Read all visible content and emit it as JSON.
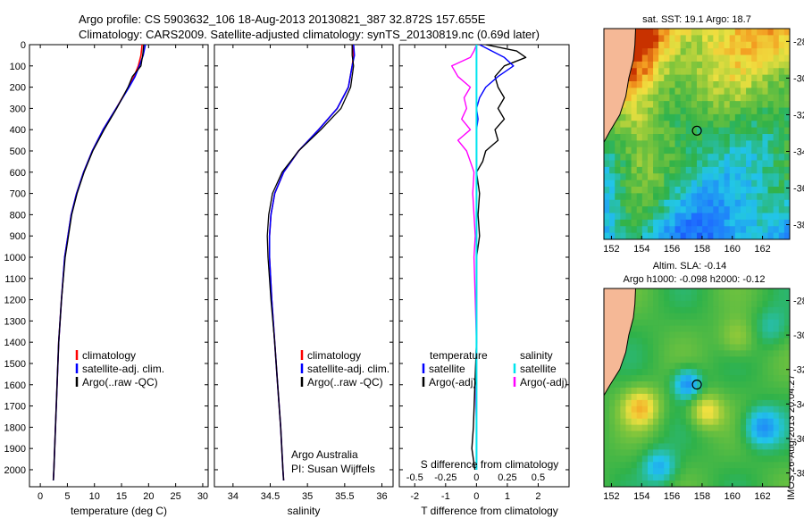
{
  "header": {
    "line1": "Argo profile: CS 5903632_106 18-Aug-2013 20130821_387 32.872S 157.655E",
    "line2": "Climatology: CARS2009. Satellite-adjusted climatology: synTS_20130819.nc (0.69d later)"
  },
  "stamp": "IMOS 26-Aug-2013 20:04:27",
  "colors": {
    "climatology": "#ff0000",
    "satellite": "#0000ff",
    "argo": "#000000",
    "salinity_satellite": "#00e5ee",
    "salinity_argo": "#ff00ff",
    "land": "#f5b896"
  },
  "chart_data": [
    {
      "type": "line",
      "xlabel": "temperature (deg C)",
      "ylabel": "",
      "xlim": [
        -2,
        31
      ],
      "ylim": [
        2080,
        0
      ],
      "xticks": [
        0,
        5,
        10,
        15,
        20,
        25,
        30
      ],
      "yticks": [
        0,
        100,
        200,
        300,
        400,
        500,
        600,
        700,
        800,
        900,
        1000,
        1100,
        1200,
        1300,
        1400,
        1500,
        1600,
        1700,
        1800,
        1900,
        2000
      ],
      "y": [
        0,
        50,
        100,
        150,
        200,
        300,
        400,
        500,
        600,
        700,
        800,
        1000,
        1200,
        1400,
        1600,
        1800,
        2000,
        2050
      ],
      "series": [
        {
          "name": "climatology",
          "values": [
            18.8,
            18.6,
            18.1,
            17.3,
            16.3,
            14.0,
            11.6,
            9.6,
            8.0,
            6.7,
            5.7,
            4.5,
            3.9,
            3.4,
            3.1,
            2.8,
            2.5,
            2.4
          ]
        },
        {
          "name": "satellite-adj. clim.",
          "values": [
            19.4,
            19.0,
            18.3,
            17.5,
            16.4,
            14.0,
            11.6,
            9.6,
            8.0,
            6.7,
            5.7,
            4.5,
            3.9,
            3.4,
            3.1,
            2.8,
            2.5,
            2.4
          ]
        },
        {
          "name": "Argo(..raw -QC)",
          "values": [
            19.1,
            18.9,
            18.6,
            17.0,
            16.2,
            14.1,
            11.8,
            9.7,
            8.1,
            6.8,
            5.8,
            4.6,
            3.9,
            3.4,
            3.1,
            2.8,
            2.5,
            2.4
          ]
        }
      ]
    },
    {
      "type": "line",
      "xlabel": "salinity",
      "ylabel": "",
      "xlim": [
        33.75,
        36.15
      ],
      "ylim": [
        2080,
        0
      ],
      "xticks": [
        34,
        34.5,
        35,
        35.5,
        36
      ],
      "annotations": [
        "Argo Australia",
        "PI: Susan Wijffels"
      ],
      "y": [
        0,
        50,
        100,
        200,
        300,
        400,
        500,
        600,
        700,
        800,
        900,
        1000,
        1200,
        1400,
        1600,
        1800,
        2000,
        2050
      ],
      "series": [
        {
          "name": "climatology",
          "values": [
            35.6,
            35.62,
            35.6,
            35.55,
            35.4,
            35.15,
            34.88,
            34.68,
            34.56,
            34.51,
            34.49,
            34.49,
            34.52,
            34.56,
            34.6,
            34.64,
            34.67,
            34.68
          ]
        },
        {
          "name": "satellite-adj. clim.",
          "values": [
            35.62,
            35.63,
            35.6,
            35.55,
            35.4,
            35.15,
            34.88,
            34.68,
            34.56,
            34.51,
            34.49,
            34.49,
            34.52,
            34.56,
            34.6,
            34.64,
            34.67,
            34.68
          ]
        },
        {
          "name": "Argo(..raw -QC)",
          "values": [
            35.6,
            35.6,
            35.62,
            35.58,
            35.45,
            35.18,
            34.88,
            34.66,
            34.53,
            34.48,
            34.46,
            34.47,
            34.51,
            34.56,
            34.6,
            34.64,
            34.67,
            34.68
          ]
        }
      ]
    },
    {
      "type": "line",
      "xlabel": "T difference from climatology",
      "ylabel": "",
      "xlim": [
        -2.5,
        3
      ],
      "ylim": [
        2080,
        0
      ],
      "xticks": [
        -2,
        -1,
        0,
        1,
        2
      ],
      "top_label": "S difference from climatology",
      "top_ticks": [
        "-0.5",
        "-0.25",
        "0",
        "0.25",
        "0.5"
      ],
      "legend": {
        "temperature_title": "temperature",
        "salinity_title": "salinity"
      },
      "y": [
        0,
        30,
        60,
        100,
        150,
        200,
        250,
        300,
        350,
        400,
        450,
        500,
        550,
        600,
        700,
        800,
        900,
        1000,
        1200,
        1400,
        1600,
        1800,
        1900,
        1950,
        2000
      ],
      "series": [
        {
          "name": "satellite",
          "quantity": "temperature",
          "values": [
            0.1,
            0.5,
            0.9,
            1.2,
            0.7,
            0.3,
            0.1,
            0.0,
            0.05,
            0.0,
            0.0,
            0.0,
            0.0,
            0.0,
            0.0,
            0.0,
            0.0,
            0.0,
            0.0,
            0.0,
            0.0,
            0.0,
            0.0,
            0.0,
            0.0
          ]
        },
        {
          "name": "Argo(-adj)",
          "quantity": "temperature",
          "values": [
            0.3,
            1.3,
            1.6,
            0.9,
            0.6,
            0.7,
            0.9,
            0.7,
            0.9,
            0.6,
            0.7,
            0.3,
            0.2,
            0.0,
            0.1,
            0.05,
            0.1,
            0.0,
            0.0,
            0.0,
            -0.05,
            -0.1,
            -0.15,
            -0.1,
            -0.05
          ]
        },
        {
          "name": "satellite",
          "quantity": "salinity",
          "values": [
            0.0,
            0.0,
            0.0,
            0.0,
            0.0,
            0.0,
            0.0,
            0.0,
            0.0,
            0.0,
            0.0,
            0.0,
            0.0,
            0.0,
            0.0,
            0.0,
            0.0,
            0.0,
            0.0,
            0.0,
            0.0,
            0.0,
            0.0,
            0.0,
            0.0
          ]
        },
        {
          "name": "Argo(-adj)",
          "quantity": "salinity",
          "values": [
            0.0,
            -0.02,
            -0.05,
            -0.2,
            -0.15,
            -0.05,
            -0.1,
            -0.08,
            -0.12,
            -0.05,
            -0.15,
            -0.08,
            -0.05,
            -0.02,
            -0.03,
            -0.02,
            -0.01,
            -0.02,
            -0.01,
            0.0,
            -0.01,
            0.0,
            0.0,
            0.0,
            0.0
          ]
        }
      ]
    },
    {
      "type": "heatmap",
      "title": "sat. SST: 19.1  Argo: 18.7",
      "xlim": [
        151.5,
        163.8
      ],
      "ylim": [
        -38.8,
        -27.3
      ],
      "xticks": [
        152,
        154,
        156,
        158,
        160,
        162
      ],
      "yticks": [
        -28,
        -30,
        -32,
        -34,
        -36,
        -38
      ],
      "argo_position": {
        "lon": 157.655,
        "lat": -32.872
      }
    },
    {
      "type": "heatmap",
      "title": "Altim. SLA: -0.14",
      "subtitle": "Argo h1000: -0.098 h2000: -0.12",
      "xlim": [
        151.5,
        163.8
      ],
      "ylim": [
        -38.8,
        -27.3
      ],
      "xticks": [
        152,
        154,
        156,
        158,
        160,
        162
      ],
      "yticks": [
        -28,
        -30,
        -32,
        -34,
        -36,
        -38
      ],
      "argo_position": {
        "lon": 157.655,
        "lat": -32.872
      }
    }
  ]
}
